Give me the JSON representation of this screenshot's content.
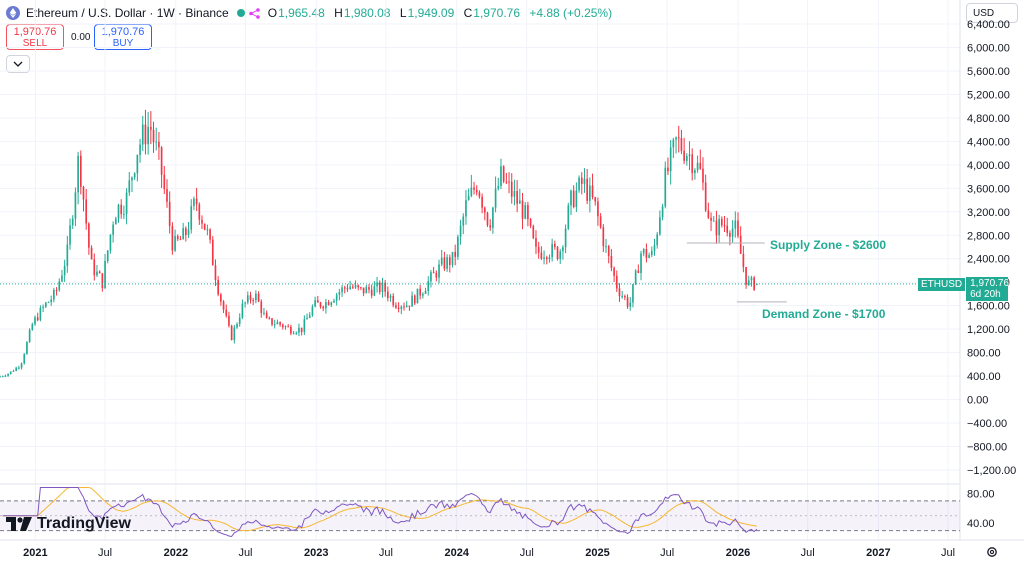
{
  "header": {
    "pair_title": "Ethereum / U.S. Dollar · 1W · Binance",
    "ohlc": [
      {
        "k": "O",
        "v": "1,965.48"
      },
      {
        "k": "H",
        "v": "1,980.08"
      },
      {
        "k": "L",
        "v": "1,949.09"
      },
      {
        "k": "C",
        "v": "1,970.76"
      }
    ],
    "change": "+4.88 (+0.25%)",
    "sell_price": "1,970.76",
    "sell_label": "SELL",
    "buy_price": "1,970.76",
    "buy_label": "BUY",
    "spread": "0.00",
    "currency": "USD"
  },
  "price_tag": {
    "symbol": "ETHUSD",
    "price": "1,970.76",
    "countdown": "6d 20h"
  },
  "brand": {
    "name": "TradingView"
  },
  "colors": {
    "up": "#22ab94",
    "down": "#f23645",
    "rsi": "#7e57c2",
    "rsi_ma": "#f7b731",
    "zone_text": "#22ab94"
  },
  "chart_data": {
    "type": "candlestick",
    "title": "Ethereum / U.S. Dollar · 1W · Binance",
    "y_axis": {
      "min": -1200,
      "max": 6400,
      "ticks": [
        -1200,
        -800,
        -400,
        0,
        400,
        800,
        1200,
        1600,
        2000,
        2400,
        2800,
        3200,
        3600,
        4000,
        4400,
        4800,
        5200,
        5600,
        6000,
        6400
      ]
    },
    "y_tick_labels": [
      "−1,200.00",
      "−800.00",
      "−400.00",
      "0.00",
      "400.00",
      "800.00",
      "1,200.00",
      "1,600.00",
      "2,000.00",
      "2,400.00",
      "2,800.00",
      "3,200.00",
      "3,600.00",
      "4,000.00",
      "4,400.00",
      "4,800.00",
      "5,200.00",
      "5,600.00",
      "6,000.00",
      "6,400.00"
    ],
    "x_axis": {
      "labels": [
        "2021",
        "Jul",
        "2022",
        "Jul",
        "2023",
        "Jul",
        "2024",
        "Jul",
        "2025",
        "Jul",
        "2026",
        "Jul",
        "2027",
        "Jul"
      ]
    },
    "last_price": 1970.76,
    "price_path": [
      [
        "2020-10",
        380
      ],
      [
        "2020-11",
        450
      ],
      [
        "2020-12",
        600
      ],
      [
        "2021-01",
        1300
      ],
      [
        "2021-02",
        1600
      ],
      [
        "2021-03",
        1800
      ],
      [
        "2021-04",
        2500
      ],
      [
        "2021-05",
        4150
      ],
      [
        "2021-06",
        2300
      ],
      [
        "2021-07",
        2000
      ],
      [
        "2021-08",
        3200
      ],
      [
        "2021-09",
        3400
      ],
      [
        "2021-10",
        4300
      ],
      [
        "2021-11",
        4700
      ],
      [
        "2021-12",
        3900
      ],
      [
        "2022-01",
        2600
      ],
      [
        "2022-02",
        2800
      ],
      [
        "2022-03",
        3400
      ],
      [
        "2022-04",
        2800
      ],
      [
        "2022-05",
        1800
      ],
      [
        "2022-06",
        1050
      ],
      [
        "2022-07",
        1600
      ],
      [
        "2022-08",
        1800
      ],
      [
        "2022-09",
        1330
      ],
      [
        "2022-10",
        1300
      ],
      [
        "2022-11",
        1200
      ],
      [
        "2022-12",
        1200
      ],
      [
        "2023-01",
        1600
      ],
      [
        "2023-02",
        1650
      ],
      [
        "2023-03",
        1800
      ],
      [
        "2023-04",
        1950
      ],
      [
        "2023-05",
        1850
      ],
      [
        "2023-06",
        1880
      ],
      [
        "2023-07",
        1900
      ],
      [
        "2023-08",
        1650
      ],
      [
        "2023-09",
        1620
      ],
      [
        "2023-10",
        1800
      ],
      [
        "2023-11",
        2050
      ],
      [
        "2023-12",
        2300
      ],
      [
        "2024-01",
        2400
      ],
      [
        "2024-02",
        3300
      ],
      [
        "2024-03",
        3700
      ],
      [
        "2024-04",
        3000
      ],
      [
        "2024-05",
        3800
      ],
      [
        "2024-06",
        3500
      ],
      [
        "2024-07",
        3200
      ],
      [
        "2024-08",
        2500
      ],
      [
        "2024-09",
        2550
      ],
      [
        "2024-10",
        2500
      ],
      [
        "2024-11",
        3400
      ],
      [
        "2024-12",
        3700
      ],
      [
        "2025-01",
        3300
      ],
      [
        "2025-02",
        2500
      ],
      [
        "2025-03",
        1900
      ],
      [
        "2025-04",
        1600
      ],
      [
        "2025-05",
        2500
      ],
      [
        "2025-06",
        2450
      ],
      [
        "2025-07",
        3700
      ],
      [
        "2025-08",
        4400
      ],
      [
        "2025-09",
        4200
      ],
      [
        "2025-10",
        3900
      ],
      [
        "2025-11",
        2900
      ],
      [
        "2025-12",
        3000
      ],
      [
        "2026-01",
        2900
      ],
      [
        "2026-02",
        1970
      ]
    ],
    "annotations": [
      {
        "text": "Supply Zone - $2600",
        "level": 2600
      },
      {
        "text": "Demand Zone - $1700",
        "level": 1700
      }
    ],
    "rsi": {
      "ticks": [
        80,
        40
      ],
      "tick_labels": [
        "80.00",
        "40.00"
      ],
      "band": [
        30,
        70
      ]
    }
  }
}
